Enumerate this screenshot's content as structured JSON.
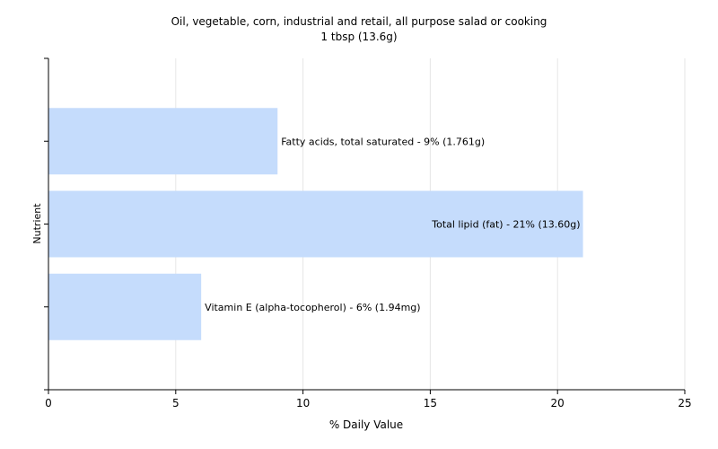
{
  "chart_data": {
    "type": "bar",
    "orientation": "horizontal",
    "title": "Oil, vegetable, corn, industrial and retail, all purpose salad or cooking",
    "subtitle": "1 tbsp (13.6g)",
    "xlabel": "% Daily Value",
    "ylabel": "Nutrient",
    "xlim": [
      0,
      25
    ],
    "xticks": [
      "0",
      "5",
      "10",
      "15",
      "20",
      "25"
    ],
    "grid": true,
    "bar_color": "#c5dcfc",
    "categories": [
      "Fatty acids, total saturated - 9% (1.761g)",
      "Total lipid (fat) - 21% (13.60g)",
      "Vitamin E (alpha-tocopherol) - 6% (1.94mg)"
    ],
    "values": [
      9,
      21,
      6
    ]
  }
}
